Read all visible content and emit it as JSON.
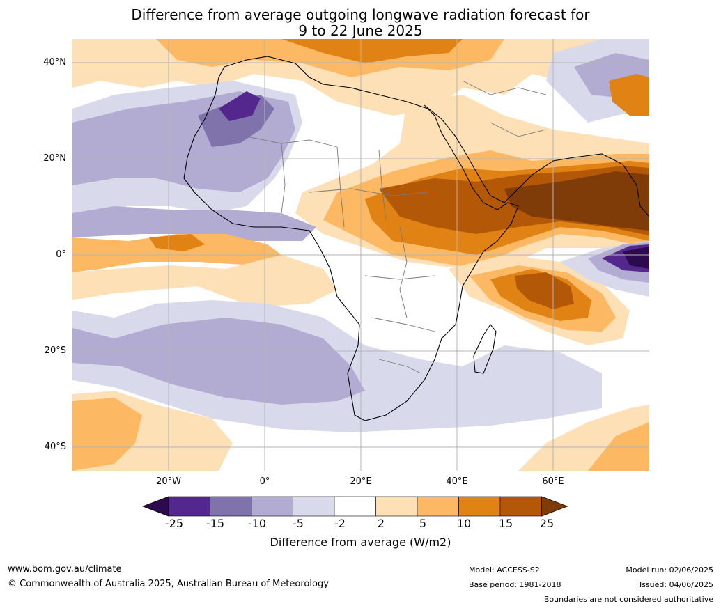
{
  "title": {
    "line1": "Difference from average outgoing longwave radiation forecast for",
    "line2": "9 to 22 June 2025"
  },
  "axes": {
    "lat_ticks": [
      "40°N",
      "20°N",
      "0°",
      "20°S",
      "40°S"
    ],
    "lon_ticks": [
      "20°W",
      "0°",
      "20°E",
      "40°E",
      "60°E"
    ]
  },
  "colorbar": {
    "ticks": [
      "-25",
      "-15",
      "-10",
      "-5",
      "-2",
      "2",
      "5",
      "10",
      "15",
      "25"
    ],
    "colors": [
      "#2d0a4e",
      "#54278f",
      "#8073ac",
      "#b2abd2",
      "#d8daeb",
      "#ffffff",
      "#fee0b6",
      "#fdb863",
      "#e08214",
      "#b35806",
      "#7f3b08"
    ],
    "label": "Difference from average (W/m2)"
  },
  "footer": {
    "website": "www.bom.gov.au/climate",
    "copyright": "© Commonwealth of Australia 2025, Australian Bureau of Meteorology",
    "model": "Model: ACCESS-S2",
    "base_period": "Base period: 1981-2018",
    "model_run": "Model run: 02/06/2025",
    "issued": "Issued: 04/06/2025",
    "disclaimer": "Boundaries are not considered authoritative"
  }
}
